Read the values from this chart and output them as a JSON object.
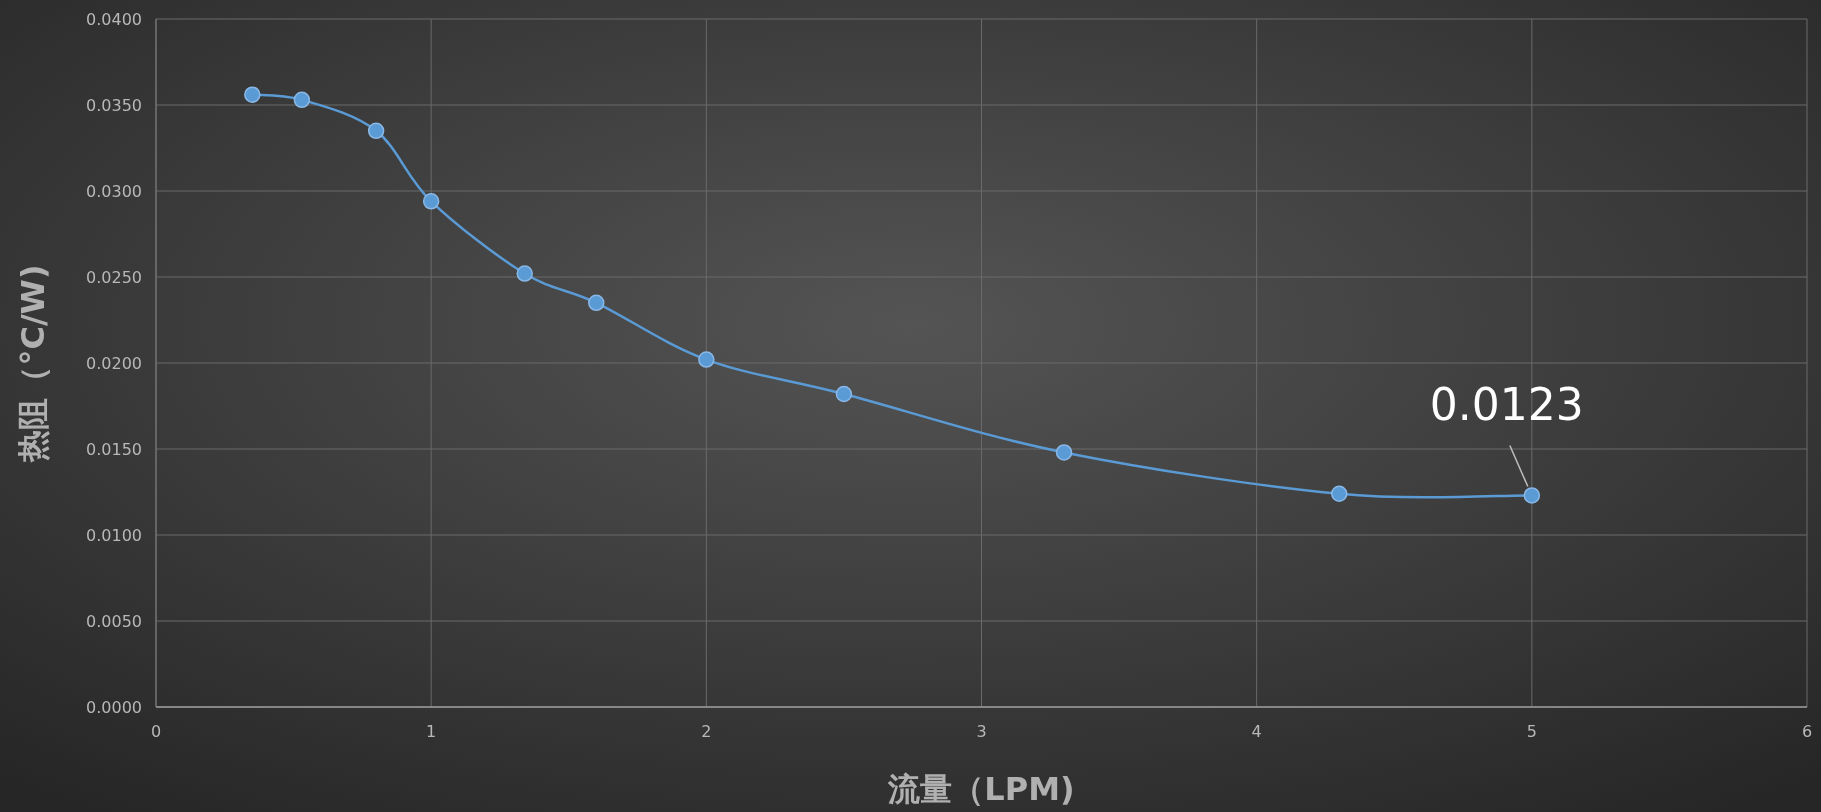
{
  "chart_data": {
    "type": "line",
    "xlabel": "流量（LPM)",
    "ylabel": "热阻（°C/W)",
    "series": [
      {
        "color": "#5b9bd5",
        "x": [
          0.35,
          0.53,
          0.8,
          1.0,
          1.34,
          1.6,
          2.0,
          2.5,
          3.3,
          4.3,
          5.0
        ],
        "values": [
          0.0356,
          0.0353,
          0.0335,
          0.0294,
          0.0252,
          0.0235,
          0.0202,
          0.0182,
          0.0148,
          0.0124,
          0.0123
        ]
      }
    ],
    "xlim": [
      0,
      6
    ],
    "xticks": [
      0,
      1,
      2,
      3,
      4,
      5,
      6
    ],
    "ylim": [
      0,
      0.04
    ],
    "yticks": [
      {
        "value": 0,
        "label": "0.0000"
      },
      {
        "value": 0.005,
        "label": "0.0050"
      },
      {
        "value": 0.01,
        "label": "0.0100"
      },
      {
        "value": 0.015,
        "label": "0.0150"
      },
      {
        "value": 0.02,
        "label": "0.0200"
      },
      {
        "value": 0.025,
        "label": "0.0250"
      },
      {
        "value": 0.03,
        "label": "0.0300"
      },
      {
        "value": 0.035,
        "label": "0.0350"
      },
      {
        "value": 0.04,
        "label": "0.0400"
      }
    ],
    "grid": true,
    "marker": "circle",
    "line_style": "solid",
    "annotations": [
      {
        "text": "0.0123",
        "x": 5,
        "y": 0.0123
      }
    ]
  }
}
